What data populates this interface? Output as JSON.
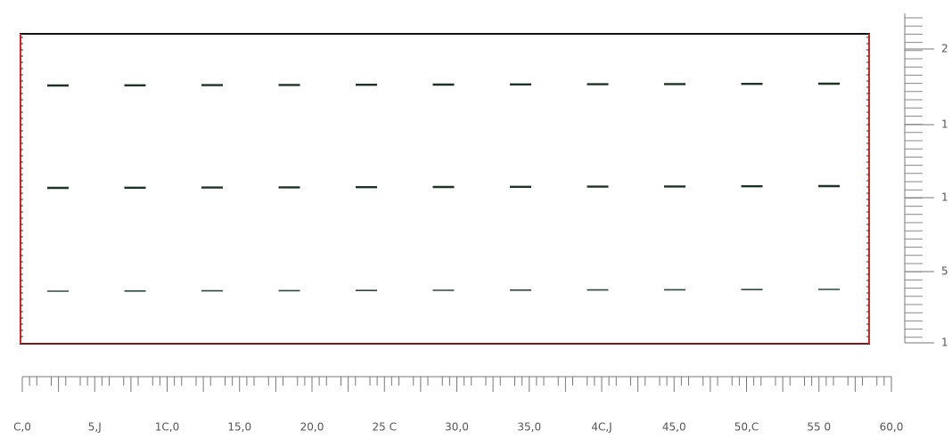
{
  "x_ruler": {
    "labels": [
      "C,0",
      "5,J",
      "1C,0",
      "15,0",
      "20,0",
      "25 C",
      "30,0",
      "35,0",
      "4C,J",
      "45,0",
      "50,C",
      "55 0",
      "60,0"
    ]
  },
  "y_ruler": {
    "labels": [
      "2",
      "1",
      "1",
      "5",
      "1"
    ]
  }
}
